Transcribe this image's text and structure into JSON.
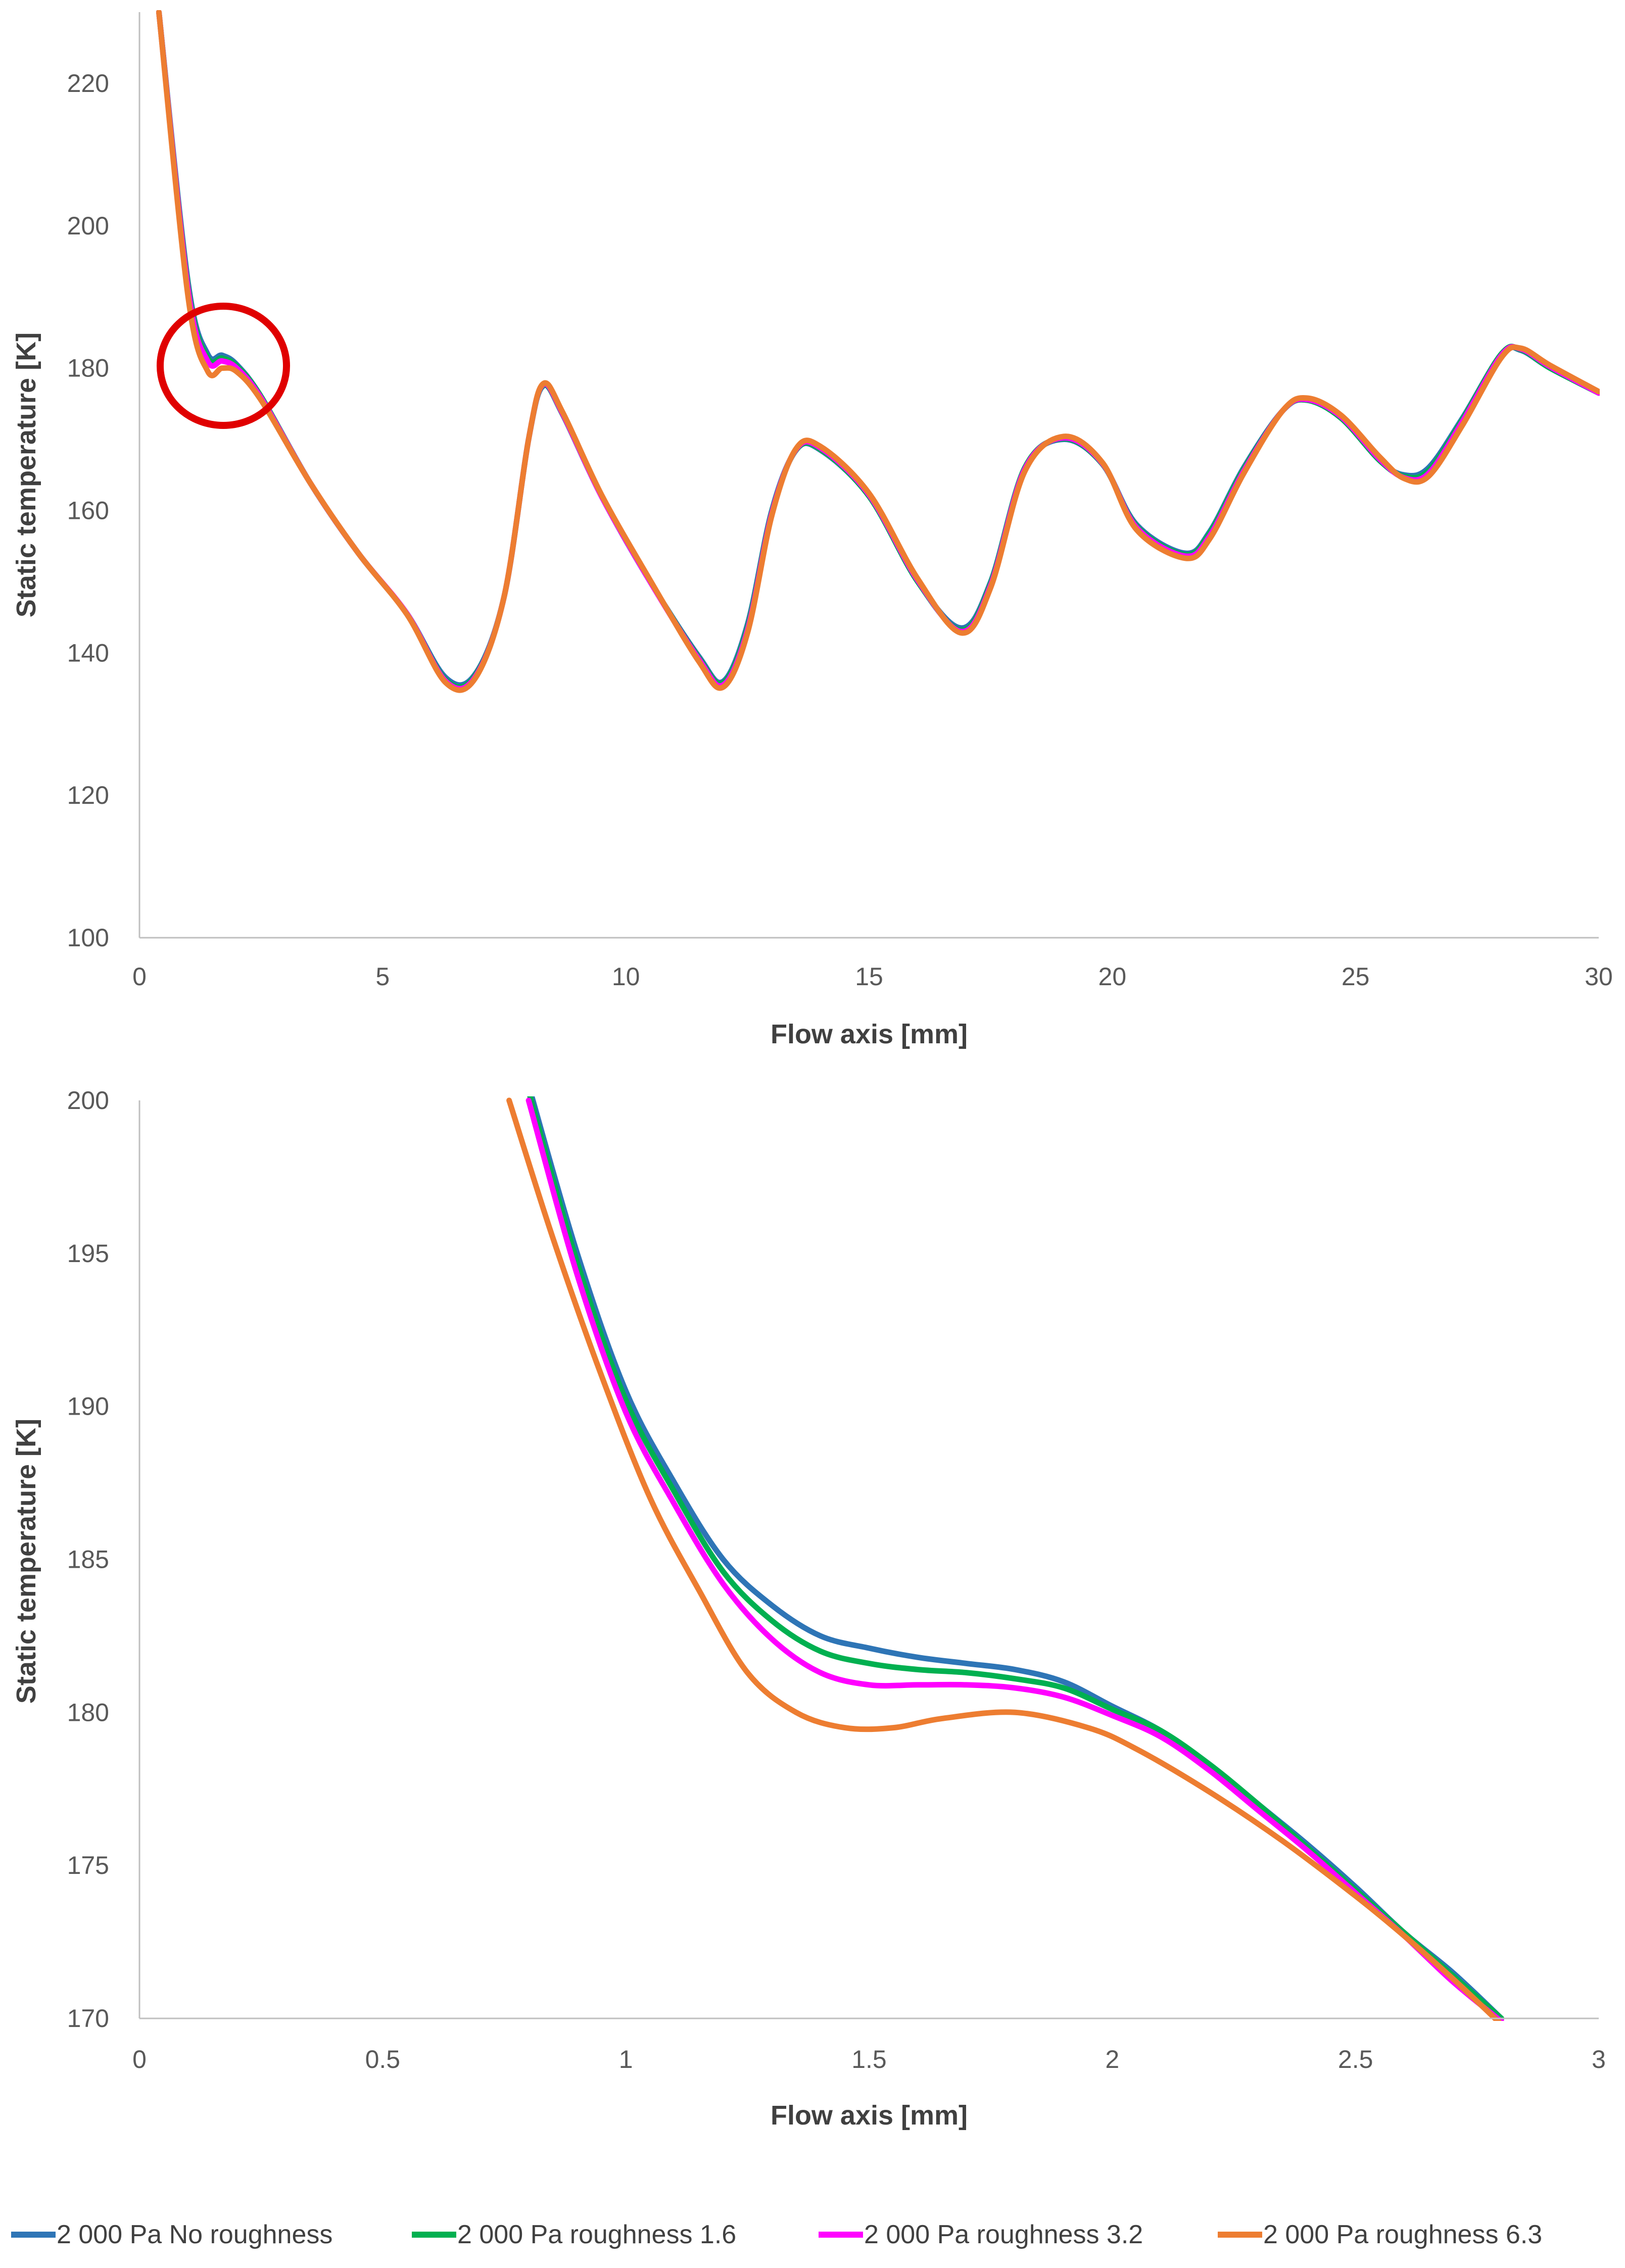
{
  "chart_data": [
    {
      "type": "line",
      "title": "",
      "xlabel": "Flow axis [mm]",
      "ylabel": "Static temperature [K]",
      "xlim": [
        0,
        30
      ],
      "ylim": [
        100,
        230
      ],
      "xticks": [
        0,
        5,
        10,
        15,
        20,
        25,
        30
      ],
      "yticks": [
        100,
        120,
        140,
        160,
        180,
        200,
        220
      ],
      "grid": false,
      "annotation": "red circle highlighting region near x = 1.7 mm, y = 180 K",
      "series": [
        {
          "name": "2 000 Pa No roughness",
          "color": "#2e75b6",
          "x": [
            0.4,
            1.0,
            1.4,
            1.7,
            2.0,
            2.5,
            3.5,
            4.5,
            5.5,
            6.3,
            6.9,
            7.5,
            8.0,
            8.3,
            8.7,
            9.5,
            10.5,
            11.5,
            12.0,
            12.5,
            13.0,
            13.5,
            14.0,
            15.0,
            16.0,
            16.9,
            17.5,
            18.2,
            19.0,
            19.8,
            20.5,
            21.5,
            22.0,
            22.7,
            23.5,
            24.0,
            24.7,
            25.5,
            26.0,
            26.5,
            27.2,
            28.0,
            28.4,
            29.0,
            30.0
          ],
          "y": [
            230,
            192,
            182,
            181.8,
            180.5,
            176,
            164,
            154,
            145.5,
            136.5,
            137,
            148,
            170,
            177.5,
            173.5,
            162,
            150,
            139.5,
            136,
            144,
            160,
            168.5,
            168.5,
            162,
            150,
            143.5,
            150,
            166,
            170,
            166.5,
            158,
            154,
            157,
            166,
            174,
            175.5,
            173,
            167,
            165,
            166,
            173,
            182,
            182.5,
            180,
            176.5
          ]
        },
        {
          "name": "2 000 Pa roughness 1.6",
          "color": "#00b050",
          "x": [
            0.4,
            1.0,
            1.4,
            1.7,
            2.0,
            2.5,
            3.5,
            4.5,
            5.5,
            6.3,
            6.9,
            7.5,
            8.0,
            8.3,
            8.7,
            9.5,
            10.5,
            11.5,
            12.0,
            12.5,
            13.0,
            13.5,
            14.0,
            15.0,
            16.0,
            16.9,
            17.5,
            18.2,
            19.0,
            19.8,
            20.5,
            21.5,
            22.0,
            22.7,
            23.5,
            24.0,
            24.7,
            25.5,
            26.0,
            26.5,
            27.2,
            28.0,
            28.4,
            29.0,
            30.0
          ],
          "y": [
            230,
            191.5,
            181.5,
            181.4,
            180.3,
            176,
            164,
            154,
            145.5,
            136.2,
            136.8,
            148,
            170,
            177.6,
            173.5,
            162,
            150,
            139.3,
            135.8,
            143.6,
            159.8,
            168.5,
            168.6,
            162,
            150,
            143.2,
            149.8,
            166,
            170.1,
            166.5,
            157.8,
            153.8,
            156.8,
            165.8,
            174,
            175.5,
            173,
            167,
            164.8,
            165.6,
            172.8,
            182,
            182.6,
            180,
            176.5
          ]
        },
        {
          "name": "2 000 Pa roughness 3.2",
          "color": "#ff00ff",
          "x": [
            0.4,
            1.0,
            1.4,
            1.7,
            2.0,
            2.5,
            3.5,
            4.5,
            5.5,
            6.3,
            6.9,
            7.5,
            8.0,
            8.3,
            8.7,
            9.5,
            10.5,
            11.5,
            12.0,
            12.5,
            13.0,
            13.5,
            14.0,
            15.0,
            16.0,
            16.9,
            17.5,
            18.2,
            19.0,
            19.8,
            20.5,
            21.5,
            22.0,
            22.7,
            23.5,
            24.0,
            24.7,
            25.5,
            26.0,
            26.5,
            27.2,
            28.0,
            28.4,
            29.0,
            30.0
          ],
          "y": [
            230,
            191,
            181,
            181,
            180,
            175.8,
            164,
            154,
            145.5,
            136,
            136.6,
            148,
            170,
            177.7,
            173.6,
            162,
            150,
            139.1,
            135.5,
            143.2,
            159.6,
            168.6,
            168.8,
            162.2,
            150.2,
            143,
            149.5,
            165.8,
            170.2,
            166.6,
            157.6,
            153.6,
            156.4,
            165.5,
            174,
            175.6,
            173.2,
            167.2,
            164.6,
            165.2,
            172.5,
            181.8,
            182.7,
            180.2,
            176.5
          ]
        },
        {
          "name": "2 000 Pa roughness 6.3",
          "color": "#ed7d31",
          "x": [
            0.4,
            1.0,
            1.4,
            1.7,
            2.0,
            2.5,
            3.5,
            4.5,
            5.5,
            6.3,
            6.9,
            7.5,
            8.0,
            8.3,
            8.7,
            9.5,
            10.5,
            11.5,
            12.0,
            12.5,
            13.0,
            13.5,
            14.0,
            15.0,
            16.0,
            16.9,
            17.5,
            18.2,
            19.0,
            19.8,
            20.5,
            21.5,
            22.0,
            22.7,
            23.5,
            24.0,
            24.7,
            25.5,
            26.0,
            26.5,
            27.2,
            28.0,
            28.4,
            29.0,
            30.0
          ],
          "y": [
            230,
            190,
            179.6,
            180,
            179.5,
            175.5,
            164,
            154,
            145.4,
            135.8,
            136.4,
            148,
            170,
            177.8,
            173.8,
            162.2,
            150.2,
            138.8,
            135.2,
            142.8,
            159.3,
            168.7,
            169,
            162.4,
            150.4,
            142.8,
            149.2,
            165.5,
            170.4,
            166.7,
            157.3,
            153.3,
            156,
            165.2,
            174,
            175.8,
            173.4,
            167.5,
            164.5,
            164.8,
            172,
            181.5,
            182.8,
            180.4,
            176.7
          ]
        }
      ]
    },
    {
      "type": "line",
      "title": "",
      "xlabel": "Flow axis [mm]",
      "ylabel": "Static temperature [K]",
      "xlim": [
        0,
        3
      ],
      "ylim": [
        170,
        200
      ],
      "xticks": [
        0,
        0.5,
        1,
        1.5,
        2,
        2.5,
        3
      ],
      "yticks": [
        170,
        175,
        180,
        185,
        190,
        195,
        200
      ],
      "grid": false,
      "series": [
        {
          "name": "2 000 Pa No roughness",
          "color": "#2e75b6",
          "x": [
            0.8,
            0.9,
            1.0,
            1.1,
            1.2,
            1.3,
            1.4,
            1.5,
            1.6,
            1.7,
            1.8,
            1.9,
            2.0,
            2.1,
            2.2,
            2.3,
            2.4,
            2.5,
            2.6,
            2.7,
            2.8
          ],
          "y": [
            200.5,
            195,
            190.5,
            187.5,
            185,
            183.5,
            182.5,
            182.1,
            181.8,
            181.6,
            181.4,
            181,
            180.2,
            179.4,
            178.3,
            177,
            175.7,
            174.3,
            172.8,
            171.5,
            170
          ]
        },
        {
          "name": "2 000 Pa roughness 1.6",
          "color": "#00b050",
          "x": [
            0.8,
            0.9,
            1.0,
            1.1,
            1.2,
            1.3,
            1.4,
            1.5,
            1.6,
            1.7,
            1.8,
            1.9,
            2.0,
            2.1,
            2.2,
            2.3,
            2.4,
            2.5,
            2.6,
            2.7,
            2.8
          ],
          "y": [
            200.3,
            194.7,
            190.2,
            187.2,
            184.6,
            183,
            182,
            181.6,
            181.4,
            181.3,
            181.1,
            180.8,
            180.1,
            179.4,
            178.3,
            177,
            175.6,
            174.2,
            172.8,
            171.4,
            170
          ]
        },
        {
          "name": "2 000 Pa roughness 3.2",
          "color": "#ff00ff",
          "x": [
            0.8,
            0.9,
            1.0,
            1.1,
            1.2,
            1.3,
            1.4,
            1.5,
            1.6,
            1.7,
            1.8,
            1.9,
            2.0,
            2.1,
            2.2,
            2.3,
            2.4,
            2.5,
            2.6,
            2.7,
            2.8
          ],
          "y": [
            200,
            194.3,
            189.8,
            186.8,
            184.2,
            182.4,
            181.3,
            180.9,
            180.9,
            180.9,
            180.8,
            180.5,
            179.9,
            179.2,
            178.1,
            176.8,
            175.5,
            174.1,
            172.7,
            171.2,
            169.9
          ]
        },
        {
          "name": "2 000 Pa roughness 6.3",
          "color": "#ed7d31",
          "x": [
            0.76,
            0.85,
            0.95,
            1.05,
            1.15,
            1.25,
            1.35,
            1.45,
            1.55,
            1.65,
            1.8,
            1.95,
            2.05,
            2.2,
            2.35,
            2.5,
            2.6,
            2.7,
            2.8
          ],
          "y": [
            200,
            195.5,
            191,
            187,
            184,
            181.3,
            180,
            179.5,
            179.5,
            179.8,
            180,
            179.5,
            178.8,
            177.4,
            175.8,
            174,
            172.7,
            171.3,
            169.8
          ]
        }
      ]
    }
  ],
  "legend": {
    "placement": "bottom",
    "items": [
      {
        "label": "2 000 Pa No roughness",
        "color": "#2e75b6"
      },
      {
        "label": "2 000 Pa roughness 1.6",
        "color": "#00b050"
      },
      {
        "label": "2 000 Pa roughness 3.2",
        "color": "#ff00ff"
      },
      {
        "label": "2 000 Pa roughness 6.3",
        "color": "#ed7d31"
      }
    ]
  },
  "annotation_color": "#e00000"
}
